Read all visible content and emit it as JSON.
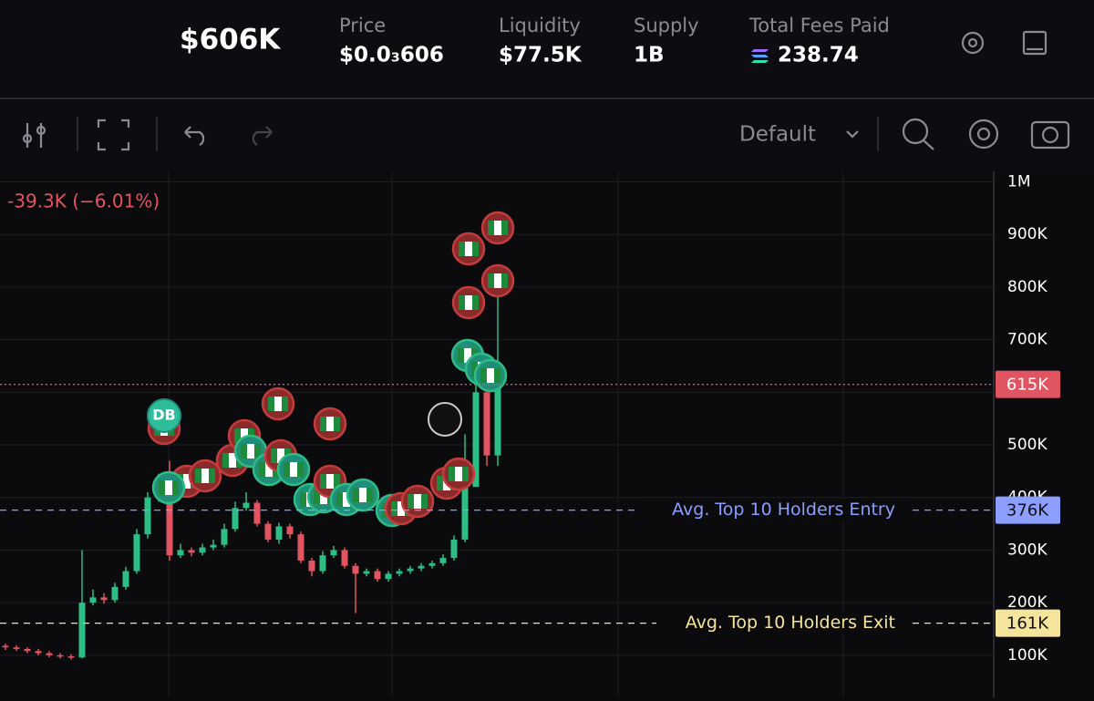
{
  "header": {
    "market_cap": "$606K",
    "stats": [
      {
        "label": "Price",
        "value": "$0.0₃606"
      },
      {
        "label": "Liquidity",
        "value": "$77.5K"
      },
      {
        "label": "Supply",
        "value": "1B"
      },
      {
        "label": "Total Fees Paid",
        "value": "238.74"
      }
    ]
  },
  "toolbar": {
    "layout": "Default"
  },
  "chart_data": {
    "type": "candlestick",
    "change": "-39.3K (−6.01%)",
    "marker_label": "DB",
    "up_color": "#2ebd85",
    "down_color": "#e05561",
    "ylim": [
      20000,
      1020000
    ],
    "yticks": [
      {
        "value": 100000,
        "label": "100K"
      },
      {
        "value": 200000,
        "label": "200K"
      },
      {
        "value": 300000,
        "label": "300K"
      },
      {
        "value": 400000,
        "label": "400K"
      },
      {
        "value": 500000,
        "label": "500K"
      },
      {
        "value": 600000,
        "label": "600K"
      },
      {
        "value": 700000,
        "label": "700K"
      },
      {
        "value": 800000,
        "label": "800K"
      },
      {
        "value": 900000,
        "label": "900K"
      },
      {
        "value": 1000000,
        "label": "1M"
      }
    ],
    "grid": true,
    "open": [
      118000,
      115000,
      112000,
      108000,
      104000,
      100000,
      98000,
      96000,
      200000,
      210000,
      205000,
      230000,
      260000,
      330000,
      400000,
      430000,
      290000,
      300000,
      295000,
      305000,
      310000,
      340000,
      380000,
      390000,
      350000,
      320000,
      345000,
      330000,
      280000,
      260000,
      290000,
      300000,
      270000,
      255000,
      260000,
      245000,
      255000,
      260000,
      265000,
      270000,
      275000,
      285000,
      320000,
      420000,
      600000,
      480000
    ],
    "close": [
      115000,
      112000,
      108000,
      104000,
      100000,
      98000,
      96000,
      200000,
      210000,
      205000,
      230000,
      260000,
      330000,
      400000,
      430000,
      290000,
      300000,
      295000,
      305000,
      310000,
      340000,
      380000,
      390000,
      350000,
      320000,
      345000,
      330000,
      280000,
      260000,
      290000,
      300000,
      270000,
      255000,
      260000,
      245000,
      255000,
      260000,
      265000,
      270000,
      275000,
      285000,
      320000,
      420000,
      600000,
      480000,
      615000
    ],
    "high": [
      122000,
      119000,
      115000,
      112000,
      108000,
      104000,
      102000,
      300000,
      225000,
      218000,
      238000,
      268000,
      340000,
      410000,
      445000,
      470000,
      312000,
      305000,
      312000,
      320000,
      350000,
      392000,
      410000,
      395000,
      355000,
      352000,
      350000,
      335000,
      285000,
      298000,
      308000,
      305000,
      275000,
      265000,
      265000,
      260000,
      265000,
      270000,
      275000,
      280000,
      292000,
      328000,
      520000,
      640000,
      610000,
      790000
    ],
    "low": [
      110000,
      108000,
      104000,
      100000,
      96000,
      94000,
      92000,
      94000,
      195000,
      198000,
      200000,
      225000,
      255000,
      322000,
      392000,
      280000,
      285000,
      288000,
      290000,
      300000,
      305000,
      335000,
      375000,
      345000,
      315000,
      312000,
      322000,
      275000,
      250000,
      255000,
      285000,
      265000,
      180000,
      250000,
      240000,
      240000,
      250000,
      255000,
      260000,
      265000,
      270000,
      280000,
      315000,
      420000,
      460000,
      460000
    ],
    "price_lines": [
      {
        "value": 615000,
        "label": "615K",
        "color": "#e05561",
        "style": "dotted"
      },
      {
        "value": 376000,
        "label": "376K",
        "name": "Avg. Top 10 Holders Entry",
        "color": "#8c9eff",
        "style": "dashed"
      },
      {
        "value": 161000,
        "label": "161K",
        "name": "Avg. Top 10 Holders Exit",
        "color": "#f5e49c",
        "style": "dashed"
      }
    ]
  }
}
